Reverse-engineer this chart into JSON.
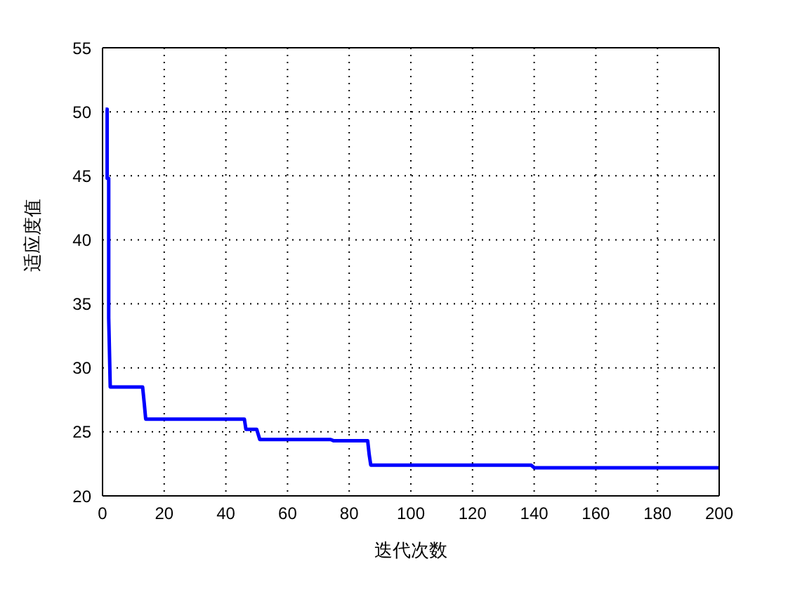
{
  "chart_data": {
    "type": "line",
    "xlabel": "迭代次数",
    "ylabel": "适应度值",
    "x": [
      1,
      1.5,
      1.5,
      2,
      2,
      2.5,
      13,
      13.5,
      14,
      46,
      46.5,
      47,
      50,
      51,
      74,
      75,
      86,
      86.5,
      87,
      139,
      140,
      200
    ],
    "series": [
      {
        "color": "#0000ff",
        "values": [
          50.2,
          50.2,
          44.8,
          44.8,
          33.9,
          28.5,
          28.5,
          27.3,
          26,
          26,
          25.2,
          25.2,
          25.2,
          24.4,
          24.4,
          24.3,
          24.3,
          23.2,
          22.4,
          22.4,
          22.2,
          22.2
        ]
      }
    ],
    "xlim": [
      0,
      200
    ],
    "ylim": [
      20,
      55
    ],
    "xticks": [
      0,
      20,
      40,
      60,
      80,
      100,
      120,
      140,
      160,
      180,
      200
    ],
    "yticks": [
      20,
      25,
      30,
      35,
      40,
      45,
      50,
      55
    ],
    "grid": true,
    "line_style": "solid",
    "marker": "none",
    "legend": false
  }
}
